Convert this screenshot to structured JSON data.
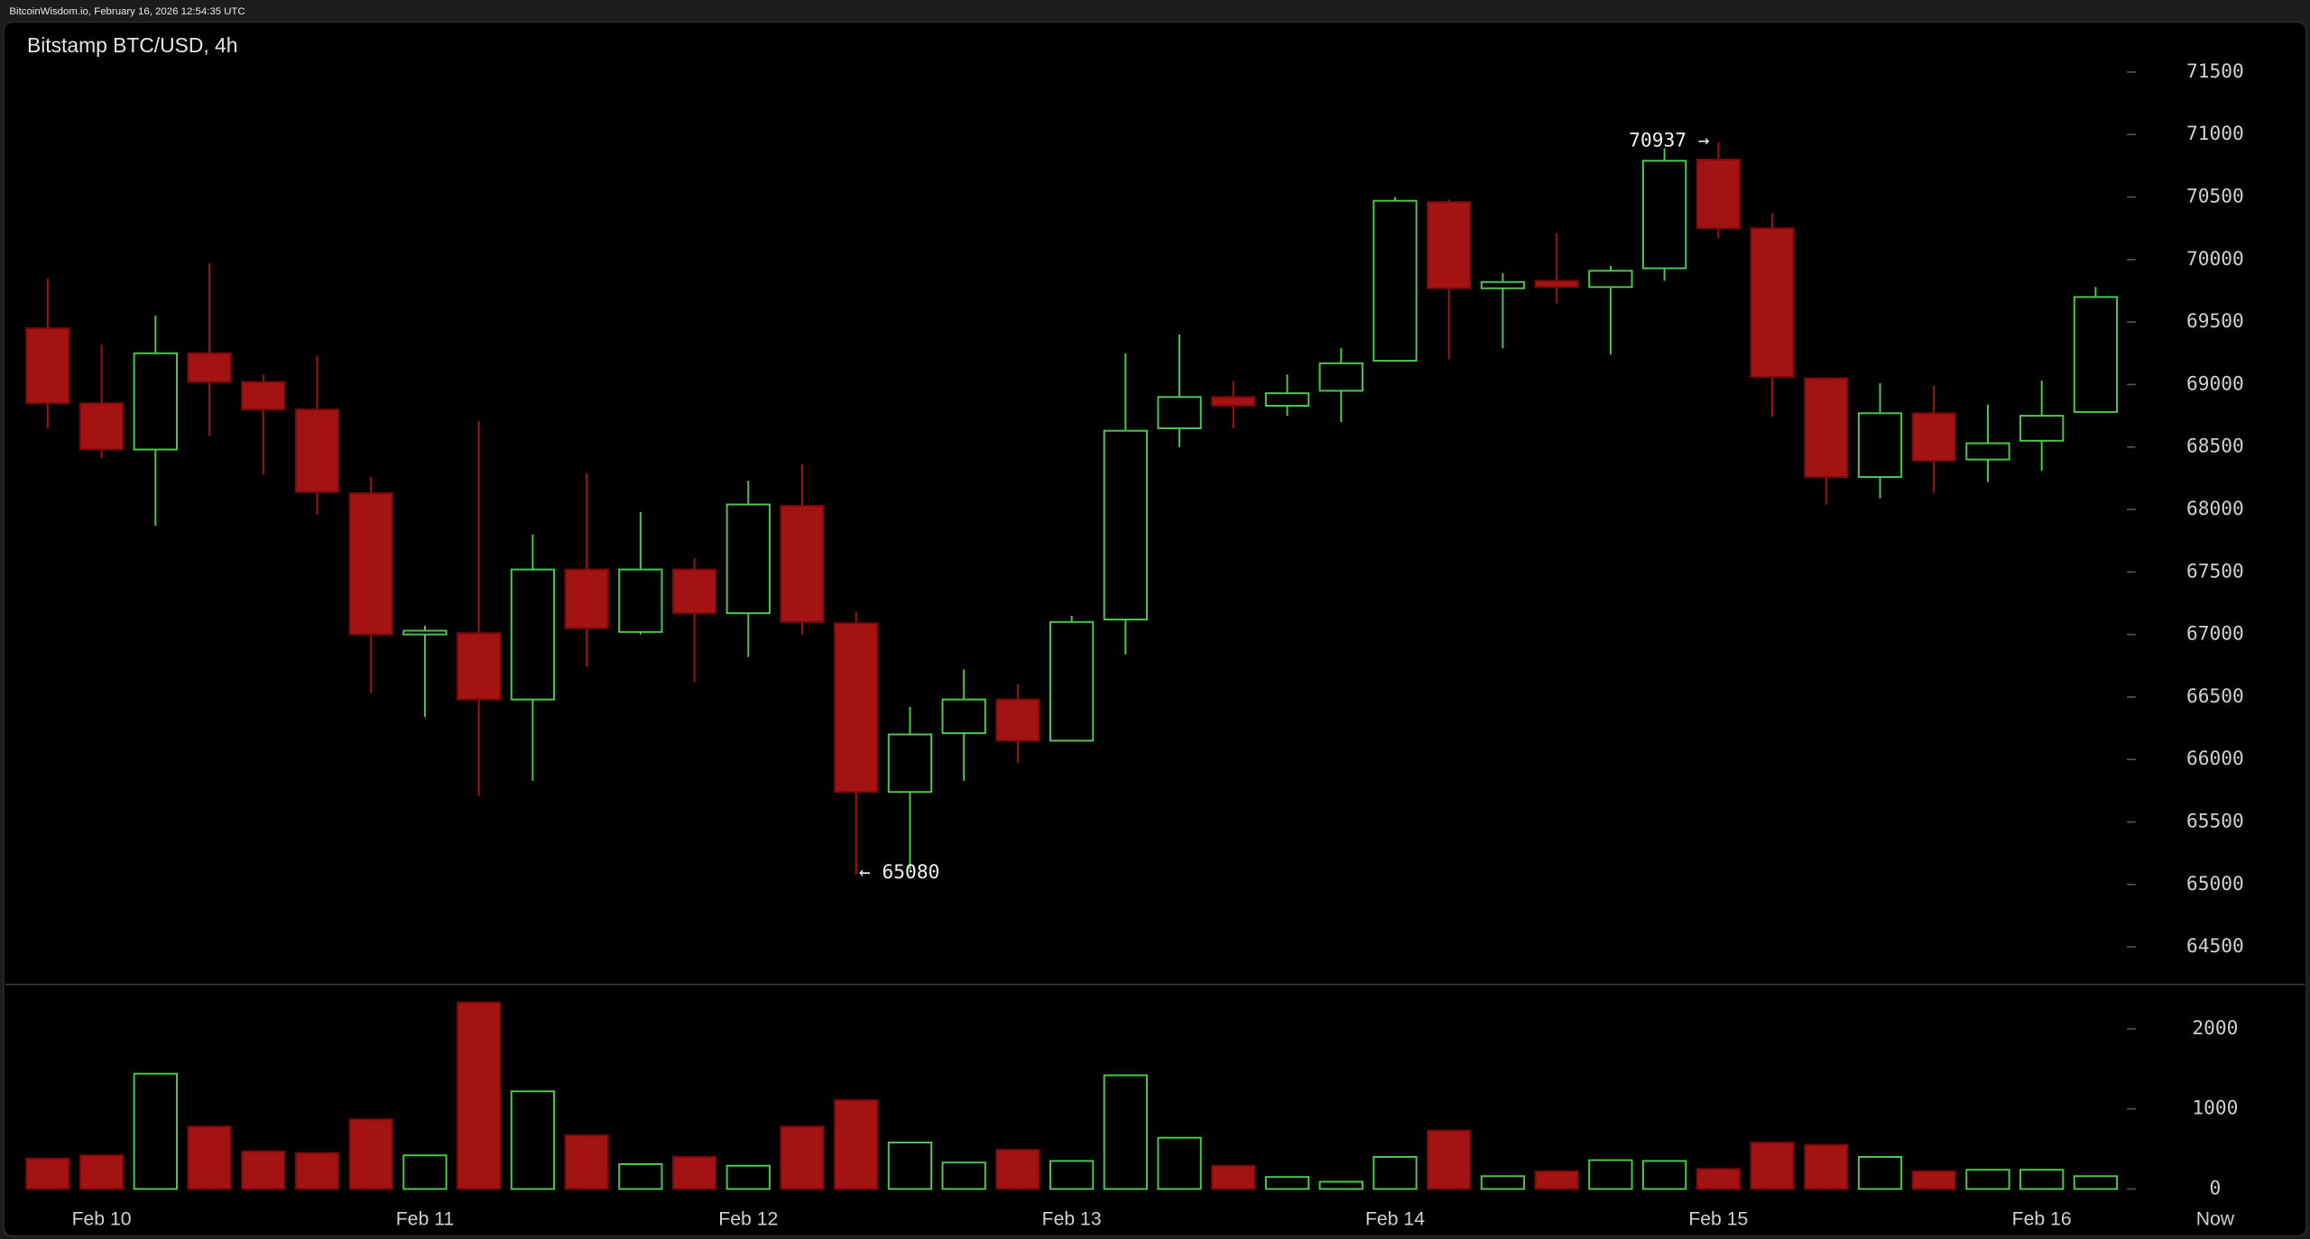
{
  "header": "BitcoinWisdom.io, February 16, 2026 12:54:35 UTC",
  "chart_data": {
    "type": "candlestick",
    "title": "Bitstamp BTC/USD, 4h",
    "categories": [
      null,
      "Feb 10",
      null,
      null,
      null,
      null,
      null,
      "Feb 11",
      null,
      null,
      null,
      null,
      null,
      "Feb 12",
      null,
      null,
      null,
      null,
      null,
      "Feb 13",
      null,
      null,
      null,
      null,
      null,
      "Feb 14",
      null,
      null,
      null,
      null,
      null,
      "Feb 15",
      null,
      null,
      null,
      null,
      null,
      "Feb 16",
      null
    ],
    "now_label": "Now",
    "open": [
      69450,
      68850,
      68480,
      69250,
      69020,
      68800,
      68130,
      67000,
      67010,
      66480,
      67520,
      67020,
      67520,
      67170,
      68030,
      67090,
      65740,
      66210,
      66480,
      66150,
      67120,
      68650,
      68900,
      68830,
      68950,
      69190,
      70460,
      69770,
      69830,
      69780,
      69930,
      70800,
      70250,
      69050,
      68260,
      68770,
      68400,
      68550,
      68780
    ],
    "high": [
      69850,
      69320,
      69550,
      69970,
      69080,
      69230,
      68260,
      67070,
      68710,
      67800,
      68290,
      67980,
      67610,
      68230,
      68360,
      67180,
      66420,
      66720,
      66600,
      67150,
      69250,
      69400,
      69030,
      69080,
      69290,
      70500,
      70480,
      69890,
      70210,
      69950,
      70890,
      70937,
      70370,
      69050,
      69010,
      68990,
      68840,
      69030,
      69780
    ],
    "low": [
      68650,
      68410,
      67870,
      68590,
      68280,
      67960,
      66530,
      66340,
      65710,
      65830,
      66740,
      67000,
      66620,
      66820,
      67000,
      65080,
      65120,
      65830,
      65970,
      66150,
      66840,
      68500,
      68650,
      68750,
      68700,
      69190,
      69200,
      69290,
      69650,
      69240,
      69830,
      70170,
      68740,
      68040,
      68090,
      68130,
      68220,
      68310,
      68780
    ],
    "close": [
      68850,
      68480,
      69250,
      69020,
      68800,
      68140,
      67000,
      67030,
      66480,
      67520,
      67050,
      67520,
      67170,
      68040,
      67100,
      65740,
      66200,
      66480,
      66150,
      67100,
      68630,
      68900,
      68830,
      68930,
      69170,
      70470,
      69770,
      69820,
      69780,
      69910,
      70790,
      70250,
      69060,
      68260,
      68770,
      68390,
      68530,
      68750,
      69700
    ],
    "up_color": "#4cc94c",
    "down_color": "#a31313",
    "ylim": [
      64200,
      71900
    ],
    "yticks": [
      64500,
      65000,
      65500,
      66000,
      66500,
      67000,
      67500,
      68000,
      68500,
      69000,
      69500,
      70000,
      70500,
      71000,
      71500
    ],
    "annotations": [
      {
        "value": 70937,
        "label": "70937 →"
      },
      {
        "value": 65080,
        "label": "← 65080"
      }
    ],
    "volume": [
      380,
      420,
      1440,
      780,
      470,
      450,
      870,
      420,
      2330,
      1220,
      670,
      310,
      400,
      290,
      780,
      1110,
      580,
      330,
      490,
      350,
      1420,
      640,
      290,
      150,
      90,
      400,
      730,
      160,
      220,
      360,
      350,
      250,
      580,
      550,
      400,
      220,
      240,
      240,
      160
    ],
    "volume_ylim": [
      0,
      2500
    ],
    "volume_yticks": [
      0,
      1000,
      2000
    ]
  }
}
